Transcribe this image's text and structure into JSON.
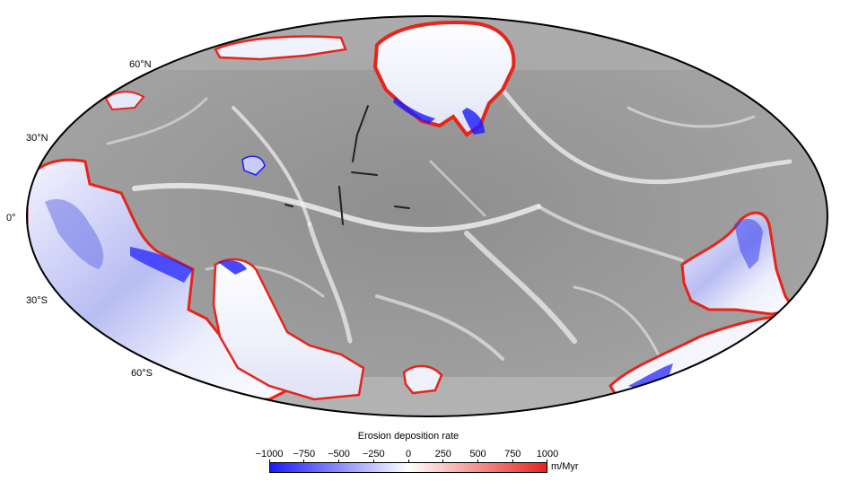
{
  "map": {
    "projection": "Mollweide (global)",
    "background": "grayscale relief of ocean floor with white spreading ridges",
    "continent_fill": "erosion/deposition rate colour scale",
    "lat_labels": {
      "n60": "60°N",
      "n30": "30°N",
      "eq": "0°",
      "s30": "30°S",
      "s60": "60°S"
    }
  },
  "legend": {
    "title": "Erosion deposition rate",
    "ticks": [
      "−1000",
      "−750",
      "−500",
      "−250",
      "0",
      "250",
      "500",
      "750",
      "1000"
    ],
    "unit": "m/Myr",
    "colors": {
      "low": "#1a1aff",
      "mid": "#ffffff",
      "high": "#e8241a"
    }
  }
}
